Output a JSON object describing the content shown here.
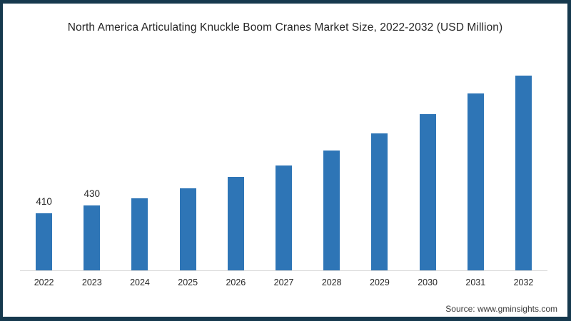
{
  "frame": {
    "border_color": "#16394e",
    "background": "#ffffff"
  },
  "source": "Source: www.gminsights.com",
  "chart_data": {
    "type": "bar",
    "title": "North America Articulating Knuckle Boom Cranes Market Size, 2022-2032 (USD Million)",
    "xlabel": "",
    "ylabel": "",
    "categories": [
      "2022",
      "2023",
      "2024",
      "2025",
      "2026",
      "2027",
      "2028",
      "2029",
      "2030",
      "2031",
      "2032"
    ],
    "values": [
      410,
      430,
      450,
      475,
      505,
      535,
      575,
      620,
      670,
      725,
      790
    ],
    "data_labels": [
      "410",
      "430",
      "",
      "",
      "",
      "",
      "",
      "",
      "",
      "",
      ""
    ],
    "bar_color": "#2E75B6",
    "axis_line_color": "#d9d9d9",
    "ylim": [
      260,
      815
    ],
    "gridlines": false,
    "legend_position": "none"
  }
}
